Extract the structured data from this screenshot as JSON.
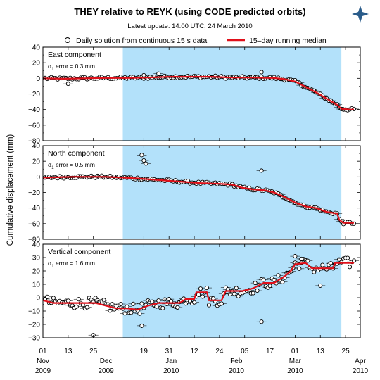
{
  "title": "THEY relative to REYK (using CODE predicted orbits)",
  "subtitle": "Latest update: 14:00 UTC, 24 March 2010",
  "colors": {
    "shade": "#b3e1fa",
    "median": "#e0101a",
    "point_fill": "#ffffff",
    "point_stroke": "#000000",
    "logo": "#2a5c8a"
  },
  "legend": {
    "points_label": "Daily solution from continuous 15 s data",
    "line_label": "15–day running median"
  },
  "chart_data": {
    "type": "scatter",
    "ylabel": "Cumulative displacement (mm)",
    "x_range": [
      0,
      151
    ],
    "shade_range": [
      38,
      142
    ],
    "x_ticks": [
      {
        "day": 0,
        "top": "01",
        "mid": "Nov",
        "bottom": "2009"
      },
      {
        "day": 12,
        "top": "13",
        "mid": "",
        "bottom": ""
      },
      {
        "day": 24,
        "top": "25",
        "mid": "",
        "bottom": ""
      },
      {
        "day": 30,
        "top": "",
        "mid": "Dec",
        "bottom": "2009"
      },
      {
        "day": 48,
        "top": "19",
        "mid": "",
        "bottom": ""
      },
      {
        "day": 60,
        "top": "31",
        "mid": "",
        "bottom": ""
      },
      {
        "day": 61,
        "top": "",
        "mid": "Jan",
        "bottom": "2010"
      },
      {
        "day": 72,
        "top": "12",
        "mid": "",
        "bottom": ""
      },
      {
        "day": 84,
        "top": "24",
        "mid": "",
        "bottom": ""
      },
      {
        "day": 92,
        "top": "",
        "mid": "Feb",
        "bottom": "2010"
      },
      {
        "day": 96,
        "top": "05",
        "mid": "",
        "bottom": ""
      },
      {
        "day": 108,
        "top": "17",
        "mid": "",
        "bottom": ""
      },
      {
        "day": 120,
        "top": "",
        "mid": "Mar",
        "bottom": "2010"
      },
      {
        "day": 120,
        "top": "01",
        "mid": "",
        "bottom": ""
      },
      {
        "day": 132,
        "top": "13",
        "mid": "",
        "bottom": ""
      },
      {
        "day": 144,
        "top": "25",
        "mid": "",
        "bottom": ""
      },
      {
        "day": 151,
        "top": "",
        "mid": "Apr",
        "bottom": "2010"
      }
    ],
    "panels": [
      {
        "name": "East component",
        "error_label": "error = 0.3 mm",
        "ylim": [
          -80,
          40
        ],
        "yticks": [
          40,
          20,
          0,
          -20,
          -40,
          -60,
          -80
        ],
        "median": [
          [
            0,
            0
          ],
          [
            10,
            -0.5
          ],
          [
            20,
            0
          ],
          [
            30,
            0.5
          ],
          [
            40,
            0.5
          ],
          [
            50,
            1
          ],
          [
            60,
            2
          ],
          [
            70,
            2
          ],
          [
            80,
            2
          ],
          [
            90,
            1
          ],
          [
            100,
            1
          ],
          [
            110,
            0.5
          ],
          [
            115,
            -1
          ],
          [
            120,
            -4
          ],
          [
            125,
            -11
          ],
          [
            130,
            -18
          ],
          [
            135,
            -26
          ],
          [
            140,
            -34
          ],
          [
            142,
            -39
          ],
          [
            146,
            -40
          ],
          [
            148,
            -40
          ]
        ],
        "outliers": [
          [
            12,
            -7
          ],
          [
            104,
            8
          ],
          [
            48,
            4
          ],
          [
            55,
            6
          ]
        ]
      },
      {
        "name": "North component",
        "error_label": "error = 0.5 mm",
        "ylim": [
          -80,
          40
        ],
        "yticks": [
          40,
          20,
          0,
          -20,
          -40,
          -60,
          -80
        ],
        "median": [
          [
            0,
            -1
          ],
          [
            15,
            0
          ],
          [
            30,
            0
          ],
          [
            38,
            -1
          ],
          [
            45,
            -2
          ],
          [
            55,
            -4
          ],
          [
            65,
            -6
          ],
          [
            75,
            -8
          ],
          [
            85,
            -9
          ],
          [
            90,
            -10
          ],
          [
            95,
            -14
          ],
          [
            100,
            -16
          ],
          [
            105,
            -17
          ],
          [
            110,
            -20
          ],
          [
            115,
            -26
          ],
          [
            120,
            -33
          ],
          [
            125,
            -38
          ],
          [
            130,
            -40
          ],
          [
            135,
            -45
          ],
          [
            140,
            -47
          ],
          [
            141,
            -55
          ],
          [
            143,
            -59
          ],
          [
            148,
            -59
          ]
        ],
        "outliers": [
          [
            47,
            28
          ],
          [
            48,
            21
          ],
          [
            49,
            17
          ],
          [
            104,
            8
          ]
        ]
      },
      {
        "name": "Vertical component",
        "error_label": "error = 1.6 mm",
        "ylim": [
          -30,
          40
        ],
        "yticks": [
          40,
          30,
          20,
          10,
          0,
          -10,
          -20,
          -30
        ],
        "median": [
          [
            0,
            -2
          ],
          [
            5,
            -4
          ],
          [
            15,
            -4
          ],
          [
            25,
            -4
          ],
          [
            30,
            -6
          ],
          [
            35,
            -8
          ],
          [
            40,
            -8
          ],
          [
            45,
            -9
          ],
          [
            50,
            -6
          ],
          [
            55,
            -4
          ],
          [
            60,
            -4
          ],
          [
            65,
            -4
          ],
          [
            68,
            -1
          ],
          [
            72,
            -1
          ],
          [
            73,
            4
          ],
          [
            78,
            4
          ],
          [
            79,
            -2
          ],
          [
            85,
            -2
          ],
          [
            87,
            5
          ],
          [
            95,
            5
          ],
          [
            100,
            7
          ],
          [
            105,
            11
          ],
          [
            110,
            11
          ],
          [
            115,
            16
          ],
          [
            118,
            20
          ],
          [
            120,
            25
          ],
          [
            125,
            26
          ],
          [
            128,
            22
          ],
          [
            135,
            22
          ],
          [
            138,
            22
          ],
          [
            139,
            26
          ],
          [
            148,
            26
          ]
        ],
        "outliers": [
          [
            24,
            -28
          ],
          [
            47,
            -21
          ],
          [
            104,
            -18
          ],
          [
            120,
            31
          ],
          [
            123,
            29
          ],
          [
            132,
            9
          ]
        ]
      }
    ]
  }
}
